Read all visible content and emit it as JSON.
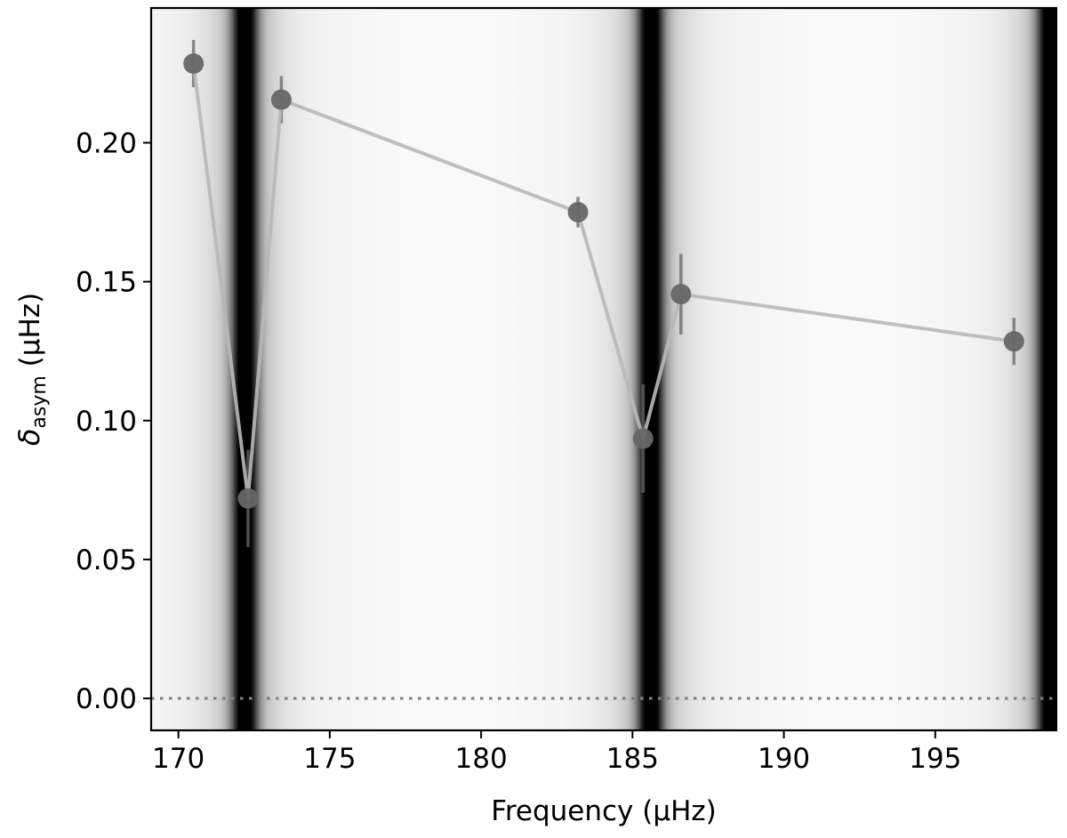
{
  "chart_data": {
    "type": "scatter",
    "title": "",
    "xlabel": "Frequency (μHz)",
    "ylabel": {
      "symbol": "δ",
      "subscript": "asym",
      "unit": " (μHz)"
    },
    "xlim": [
      169.1,
      199.0
    ],
    "ylim": [
      -0.0115,
      0.2485
    ],
    "x_ticks": [
      170,
      175,
      180,
      185,
      190,
      195
    ],
    "y_ticks": [
      0.0,
      0.05,
      0.1,
      0.15,
      0.2
    ],
    "x_tick_labels": [
      "170",
      "175",
      "180",
      "185",
      "190",
      "195"
    ],
    "y_tick_labels": [
      "0.00",
      "0.05",
      "0.10",
      "0.15",
      "0.20"
    ],
    "grid": false,
    "legend": "none",
    "reference_line": {
      "y": 0.0,
      "style": "dotted",
      "color": "#808080"
    },
    "background": {
      "type": "grayscale-shading",
      "dark_bands_at_x": [
        172.2,
        185.6,
        198.8
      ],
      "colormap": "gray_r"
    },
    "series": [
      {
        "style": "line+markers",
        "line_color": "#b8b8b8",
        "marker_color": "#666666",
        "points": [
          {
            "x": 170.5,
            "y": 0.2285,
            "err": 0.0085
          },
          {
            "x": 172.3,
            "y": 0.072,
            "err": 0.0175
          },
          {
            "x": 173.4,
            "y": 0.2155,
            "err": 0.0085
          },
          {
            "x": 183.2,
            "y": 0.175,
            "err": 0.0055
          },
          {
            "x": 185.35,
            "y": 0.0935,
            "err": 0.0195
          },
          {
            "x": 186.6,
            "y": 0.1455,
            "err": 0.0145
          },
          {
            "x": 197.6,
            "y": 0.1285,
            "err": 0.0085
          }
        ]
      }
    ]
  }
}
